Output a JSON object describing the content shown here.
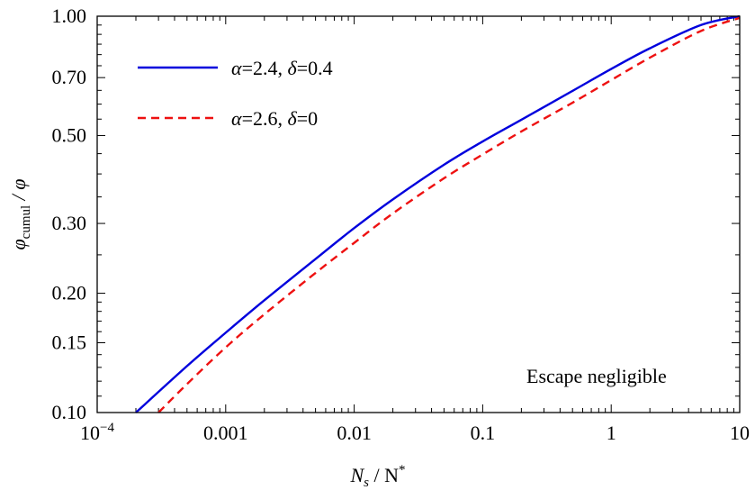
{
  "chart_data": {
    "type": "line",
    "xlabel_main": "N",
    "xlabel_sub": "s",
    "xlabel_mid": " / N",
    "xlabel_sup": "*",
    "ylabel_main": "φ",
    "ylabel_sub": "cumul",
    "ylabel_tail": " / φ",
    "x_scale": "log",
    "y_scale": "log",
    "xlim": [
      0.0001,
      10
    ],
    "ylim": [
      0.1,
      1.0
    ],
    "x_ticks": [
      {
        "value": 0.0001,
        "base": "10",
        "exp": "−4"
      },
      {
        "value": 0.001,
        "label": "0.001"
      },
      {
        "value": 0.01,
        "label": "0.01"
      },
      {
        "value": 0.1,
        "label": "0.1"
      },
      {
        "value": 1,
        "label": "1"
      },
      {
        "value": 10,
        "label": "10"
      }
    ],
    "y_ticks": [
      {
        "value": 0.1,
        "label": "0.10"
      },
      {
        "value": 0.15,
        "label": "0.15"
      },
      {
        "value": 0.2,
        "label": "0.20"
      },
      {
        "value": 0.3,
        "label": "0.30"
      },
      {
        "value": 0.5,
        "label": "0.50"
      },
      {
        "value": 0.7,
        "label": "0.70"
      },
      {
        "value": 1.0,
        "label": "1.00"
      }
    ],
    "legend_position": "top-left",
    "annotation": "Escape negligible",
    "series": [
      {
        "alpha": "2.4",
        "delta": "0.4",
        "color": "#0000dd",
        "style": "solid",
        "x": [
          0.0002,
          0.0005,
          0.001,
          0.002,
          0.005,
          0.01,
          0.02,
          0.05,
          0.1,
          0.2,
          0.5,
          1,
          2,
          5,
          10
        ],
        "y": [
          0.1,
          0.131,
          0.159,
          0.192,
          0.244,
          0.292,
          0.345,
          0.422,
          0.483,
          0.548,
          0.648,
          0.736,
          0.83,
          0.95,
          1.0
        ]
      },
      {
        "alpha": "2.6",
        "delta": "0",
        "color": "#ee1111",
        "style": "dashed",
        "x": [
          0.0003,
          0.0005,
          0.001,
          0.002,
          0.005,
          0.01,
          0.02,
          0.05,
          0.1,
          0.2,
          0.5,
          1,
          2,
          5,
          10
        ],
        "y": [
          0.1,
          0.118,
          0.146,
          0.177,
          0.225,
          0.268,
          0.318,
          0.39,
          0.448,
          0.512,
          0.605,
          0.69,
          0.786,
          0.918,
          0.99
        ]
      }
    ]
  }
}
